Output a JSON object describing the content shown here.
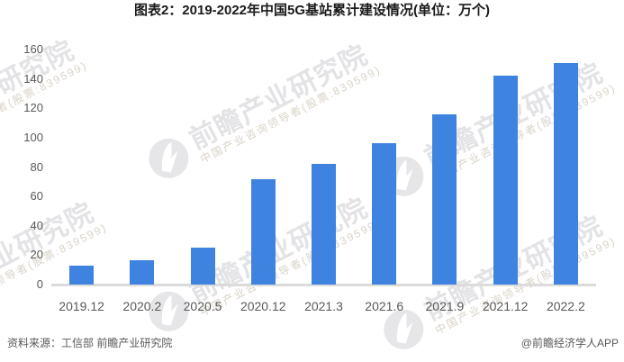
{
  "title": "图表2：2019-2022年中国5G基站累计建设情况(单位：万个)",
  "chart_data": {
    "type": "bar",
    "categories": [
      "2019.12",
      "2020.2",
      "2020.5",
      "2020.12",
      "2021.3",
      "2021.6",
      "2021.9",
      "2021.12",
      "2022.2"
    ],
    "values": [
      13,
      16.4,
      25,
      71.8,
      81.9,
      96.1,
      115.9,
      142.5,
      150.6
    ],
    "title": "图表2：2019-2022年中国5G基站累计建设情况(单位：万个)",
    "xlabel": "",
    "ylabel": "",
    "ylim": [
      0,
      160
    ],
    "ytick_interval": 20,
    "bar_color": "#3f83e0",
    "grid": false,
    "legend": false
  },
  "footer": {
    "source": "资料来源：工信部 前瞻产业研究院",
    "credit": "@前瞻经济学人APP"
  },
  "watermark": {
    "logo": "qianzhan-logo",
    "main_text": "前瞻产业研究院",
    "sub_text": "中国产业咨询领导者(股票:839599)"
  },
  "colors": {
    "bar": "#3f83e0",
    "axis_line": "#dbdbdb",
    "tick_label": "#595959",
    "title_text": "#1a1a1a",
    "footer_text": "#595959",
    "watermark_main": "#e3e3e6",
    "watermark_sub": "#d9d3c7"
  }
}
